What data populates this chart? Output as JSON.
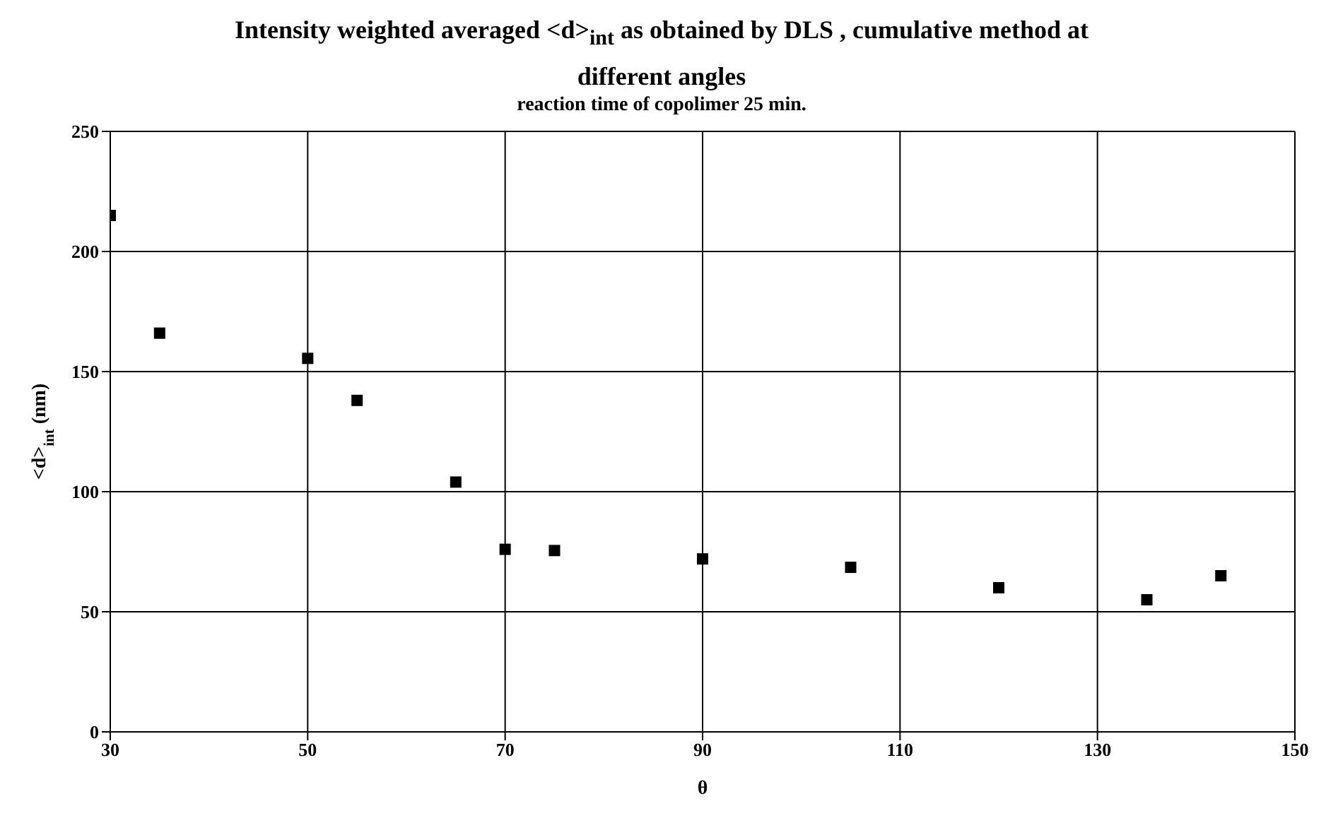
{
  "chart_data": {
    "type": "scatter",
    "title": "Intensity weighted averaged <d>$_{int}$ as obtained by DLS , cumulative method at different angles",
    "subtitle": "reaction time of copolimer 25 min.",
    "xlabel": "θ",
    "ylabel": "<d>$_{int}$ (nm)",
    "x": [
      30,
      35,
      50,
      55,
      65,
      70,
      75,
      90,
      105,
      120,
      135,
      142.5
    ],
    "series": [
      {
        "color": "#000000",
        "values": [
          215,
          166,
          155.5,
          138,
          104,
          76,
          75.5,
          72,
          68.5,
          60,
          55,
          65
        ]
      }
    ],
    "xlim": [
      30,
      150
    ],
    "xticks": [
      30,
      50,
      70,
      90,
      110,
      130,
      150
    ],
    "ylim": [
      0,
      250
    ],
    "yticks": [
      0,
      50,
      100,
      150,
      200,
      250
    ],
    "grid": true,
    "legend": false,
    "marker": "square"
  }
}
